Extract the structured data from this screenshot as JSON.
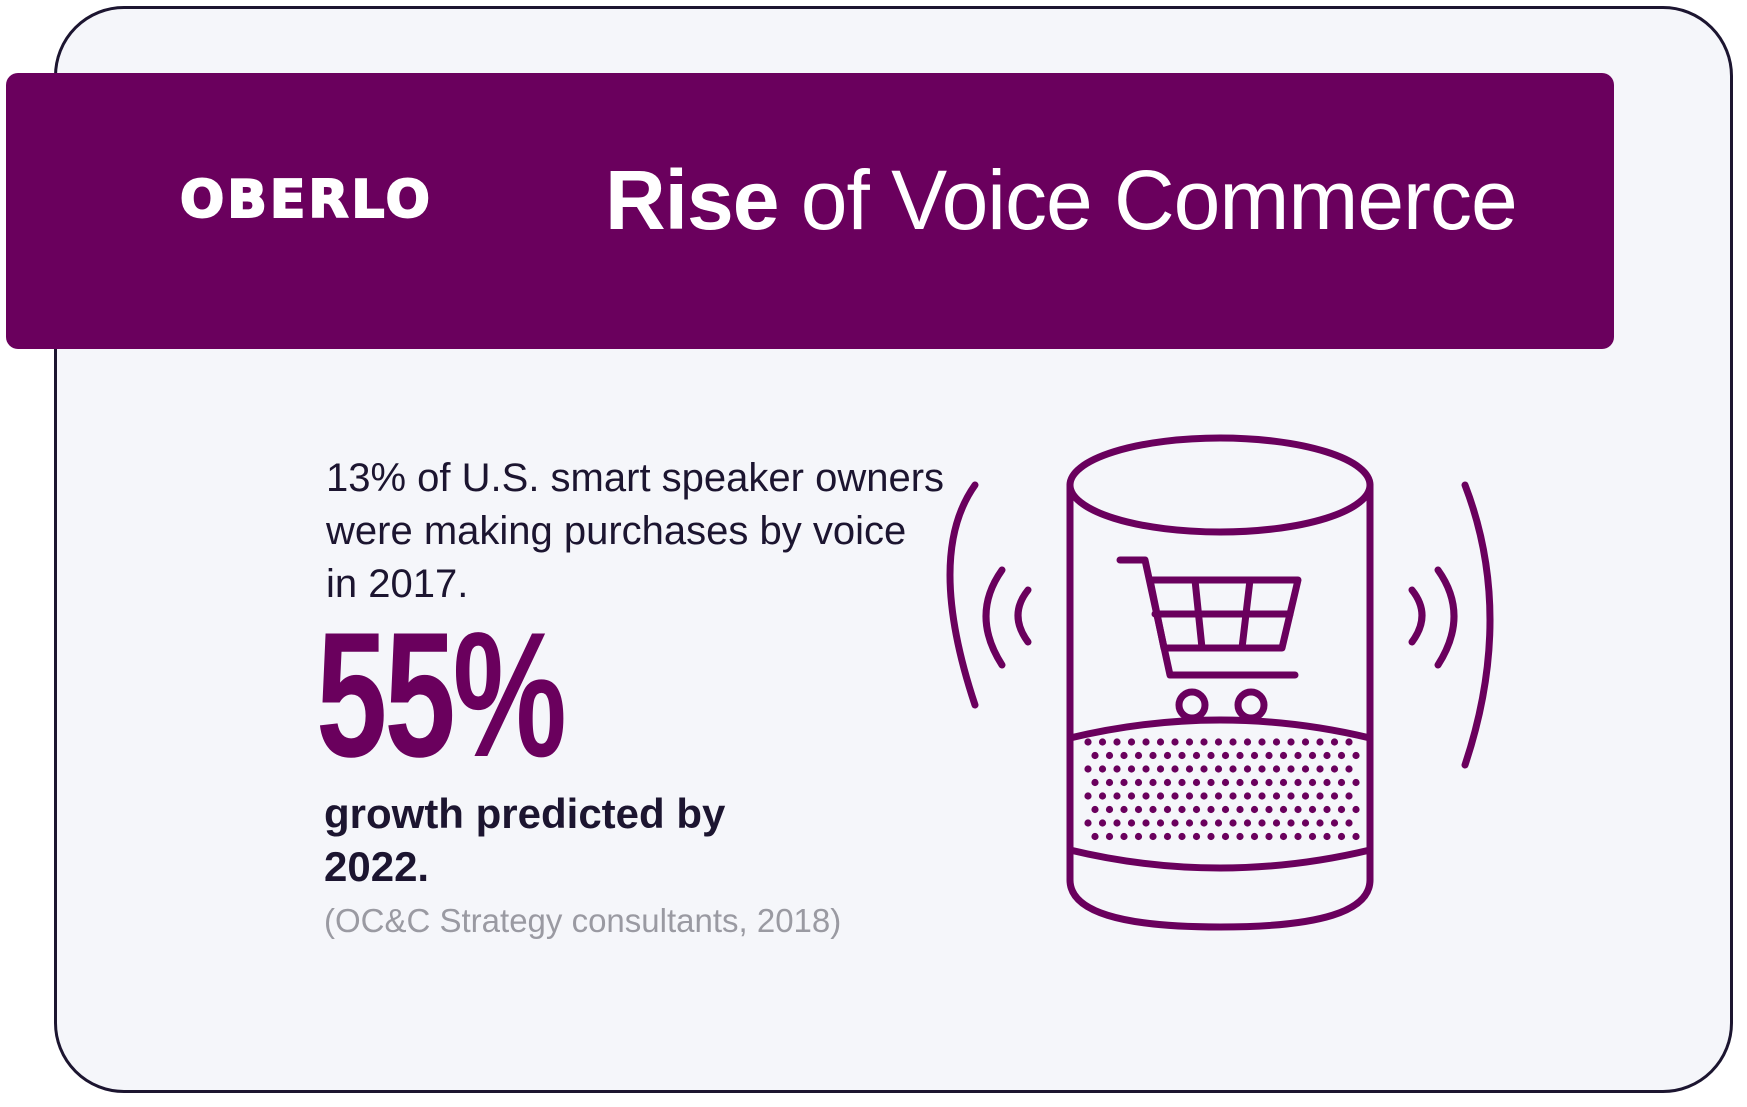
{
  "brand": {
    "logo_text": "OBERLO"
  },
  "header": {
    "title_bold": "Rise",
    "title_rest": "of Voice Commerce"
  },
  "stat": {
    "description": "13% of U.S. smart speaker owners were making purchases by voice in 2017.",
    "big_number": "55%",
    "growth_text": "growth predicted by 2022.",
    "source": "(OC&C Strategy consultants, 2018)"
  },
  "illustration": {
    "icon": "smart-speaker-cart-icon"
  },
  "colors": {
    "brand_purple": "#6a005d",
    "text_dark": "#1c1530",
    "background": "#f5f6fa",
    "source_gray": "#9a9aa2"
  }
}
